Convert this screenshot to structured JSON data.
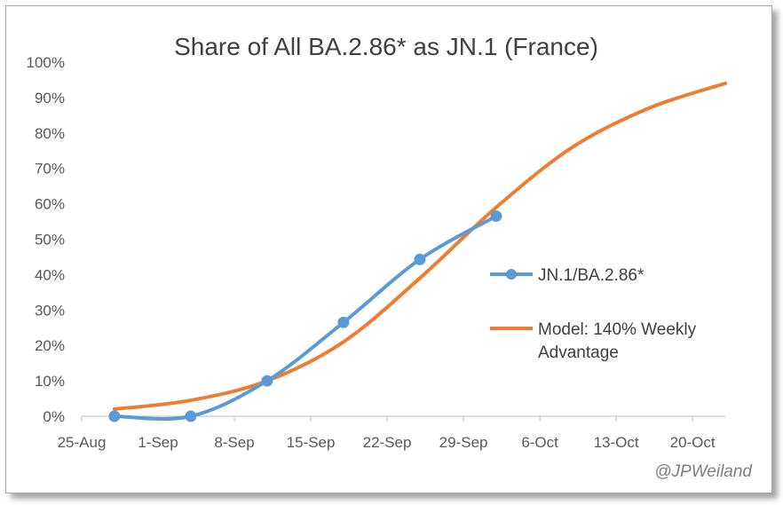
{
  "chart_data": {
    "type": "line",
    "title": "Share of All BA.2.86* as JN.1 (France)",
    "xlabel": "",
    "ylabel": "",
    "credit": "@JPWeiland",
    "x_axis": {
      "unit": "date",
      "ticks": [
        "25-Aug",
        "1-Sep",
        "8-Sep",
        "15-Sep",
        "22-Sep",
        "29-Sep",
        "6-Oct",
        "13-Oct",
        "20-Oct"
      ]
    },
    "y_axis": {
      "ylim": [
        0,
        1
      ],
      "ticks": [
        "0%",
        "10%",
        "20%",
        "30%",
        "40%",
        "50%",
        "60%",
        "70%",
        "80%",
        "90%",
        "100%"
      ]
    },
    "grid": false,
    "legend_position": "right",
    "series": [
      {
        "name": "JN.1/BA.2.86*",
        "color": "#5b9bd5",
        "markers": true,
        "points": [
          {
            "x": "2023-08-28",
            "y": 0.0
          },
          {
            "x": "2023-09-04",
            "y": 0.0
          },
          {
            "x": "2023-09-11",
            "y": 0.1
          },
          {
            "x": "2023-09-18",
            "y": 0.265
          },
          {
            "x": "2023-09-25",
            "y": 0.443
          },
          {
            "x": "2023-10-02",
            "y": 0.565
          }
        ]
      },
      {
        "name": "Model: 140% Weekly Advantage",
        "legend_lines": [
          "Model: 140% Weekly",
          "Advantage"
        ],
        "color": "#ed7d31",
        "markers": false,
        "points": [
          {
            "x": "2023-08-28",
            "y": 0.02
          },
          {
            "x": "2023-09-04",
            "y": 0.045
          },
          {
            "x": "2023-09-11",
            "y": 0.1
          },
          {
            "x": "2023-09-18",
            "y": 0.21
          },
          {
            "x": "2023-09-25",
            "y": 0.39
          },
          {
            "x": "2023-10-02",
            "y": 0.59
          },
          {
            "x": "2023-10-09",
            "y": 0.76
          },
          {
            "x": "2023-10-16",
            "y": 0.87
          },
          {
            "x": "2023-10-23",
            "y": 0.94
          }
        ]
      }
    ]
  }
}
